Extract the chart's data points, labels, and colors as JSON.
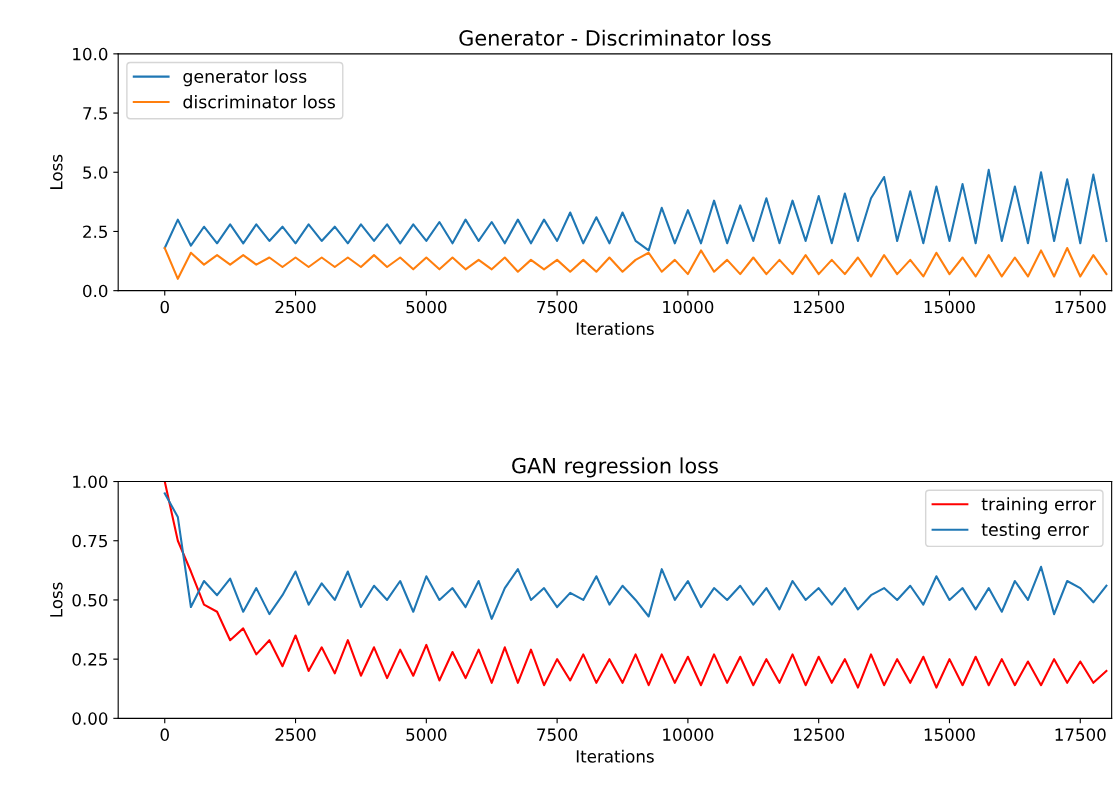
{
  "chart_data": [
    {
      "type": "line",
      "title": "Generator - Discriminator loss",
      "xlabel": "Iterations",
      "ylabel": "Loss",
      "x": [
        0,
        250,
        500,
        750,
        1000,
        1250,
        1500,
        1750,
        2000,
        2250,
        2500,
        2750,
        3000,
        3250,
        3500,
        3750,
        4000,
        4250,
        4500,
        4750,
        5000,
        5250,
        5500,
        5750,
        6000,
        6250,
        6500,
        6750,
        7000,
        7250,
        7500,
        7750,
        8000,
        8250,
        8500,
        8750,
        9000,
        9250,
        9500,
        9750,
        10000,
        10250,
        10500,
        10750,
        11000,
        11250,
        11500,
        11750,
        12000,
        12250,
        12500,
        12750,
        13000,
        13250,
        13500,
        13750,
        14000,
        14250,
        14500,
        14750,
        15000,
        15250,
        15500,
        15750,
        16000,
        16250,
        16500,
        16750,
        17000,
        17250,
        17500,
        17750,
        18000
      ],
      "series": [
        {
          "name": "generator loss",
          "color": "#1f77b4",
          "values": [
            1.8,
            3.0,
            1.9,
            2.7,
            2.0,
            2.8,
            2.0,
            2.8,
            2.1,
            2.7,
            2.0,
            2.8,
            2.1,
            2.7,
            2.0,
            2.8,
            2.1,
            2.8,
            2.0,
            2.8,
            2.1,
            2.9,
            2.0,
            3.0,
            2.1,
            2.9,
            2.0,
            3.0,
            2.0,
            3.0,
            2.1,
            3.3,
            2.0,
            3.1,
            2.0,
            3.3,
            2.1,
            1.7,
            3.5,
            2.0,
            3.4,
            2.0,
            3.8,
            2.0,
            3.6,
            2.1,
            3.9,
            2.0,
            3.8,
            2.1,
            4.0,
            2.0,
            4.1,
            2.1,
            3.9,
            4.8,
            2.1,
            4.2,
            2.0,
            4.4,
            2.1,
            4.5,
            2.0,
            5.1,
            2.1,
            4.4,
            2.0,
            5.0,
            2.1,
            4.7,
            2.0,
            4.9,
            2.1
          ]
        },
        {
          "name": "discriminator loss",
          "color": "#ff7f0e",
          "values": [
            1.8,
            0.5,
            1.6,
            1.1,
            1.5,
            1.1,
            1.5,
            1.1,
            1.4,
            1.0,
            1.4,
            1.0,
            1.4,
            1.0,
            1.4,
            1.0,
            1.5,
            1.0,
            1.4,
            0.9,
            1.4,
            0.9,
            1.4,
            0.9,
            1.3,
            0.9,
            1.4,
            0.8,
            1.3,
            0.9,
            1.3,
            0.8,
            1.3,
            0.8,
            1.4,
            0.8,
            1.3,
            1.6,
            0.8,
            1.3,
            0.7,
            1.7,
            0.8,
            1.3,
            0.7,
            1.4,
            0.7,
            1.3,
            0.7,
            1.5,
            0.7,
            1.3,
            0.7,
            1.4,
            0.6,
            1.5,
            0.7,
            1.3,
            0.6,
            1.6,
            0.7,
            1.4,
            0.6,
            1.5,
            0.6,
            1.4,
            0.6,
            1.7,
            0.6,
            1.8,
            0.6,
            1.5,
            0.7
          ]
        }
      ],
      "xlim": [
        -890,
        18100
      ],
      "ylim": [
        0,
        10
      ],
      "xticks": [
        0,
        2500,
        5000,
        7500,
        10000,
        12500,
        15000,
        17500
      ],
      "yticks": [
        {
          "value": 0,
          "label": "0.0"
        },
        {
          "value": 2.5,
          "label": "2.5"
        },
        {
          "value": 5,
          "label": "5.0"
        },
        {
          "value": 7.5,
          "label": "7.5"
        },
        {
          "value": 10,
          "label": "10.0"
        }
      ],
      "legend": "top left",
      "grid": false,
      "marker": "none",
      "line_style": "solid"
    },
    {
      "type": "line",
      "title": "GAN regression loss",
      "xlabel": "Iterations",
      "ylabel": "Loss",
      "x": [
        0,
        250,
        500,
        750,
        1000,
        1250,
        1500,
        1750,
        2000,
        2250,
        2500,
        2750,
        3000,
        3250,
        3500,
        3750,
        4000,
        4250,
        4500,
        4750,
        5000,
        5250,
        5500,
        5750,
        6000,
        6250,
        6500,
        6750,
        7000,
        7250,
        7500,
        7750,
        8000,
        8250,
        8500,
        8750,
        9000,
        9250,
        9500,
        9750,
        10000,
        10250,
        10500,
        10750,
        11000,
        11250,
        11500,
        11750,
        12000,
        12250,
        12500,
        12750,
        13000,
        13250,
        13500,
        13750,
        14000,
        14250,
        14500,
        14750,
        15000,
        15250,
        15500,
        15750,
        16000,
        16250,
        16500,
        16750,
        17000,
        17250,
        17500,
        17750,
        18000
      ],
      "series": [
        {
          "name": "training error",
          "color": "#ff0000",
          "values": [
            1.0,
            0.75,
            0.62,
            0.48,
            0.45,
            0.33,
            0.38,
            0.27,
            0.33,
            0.22,
            0.35,
            0.2,
            0.3,
            0.19,
            0.33,
            0.18,
            0.3,
            0.17,
            0.29,
            0.18,
            0.31,
            0.16,
            0.28,
            0.17,
            0.29,
            0.15,
            0.3,
            0.15,
            0.29,
            0.14,
            0.25,
            0.16,
            0.27,
            0.15,
            0.25,
            0.15,
            0.27,
            0.14,
            0.27,
            0.15,
            0.26,
            0.14,
            0.27,
            0.15,
            0.26,
            0.14,
            0.25,
            0.15,
            0.27,
            0.14,
            0.26,
            0.15,
            0.25,
            0.13,
            0.27,
            0.14,
            0.25,
            0.15,
            0.26,
            0.13,
            0.25,
            0.14,
            0.26,
            0.14,
            0.25,
            0.14,
            0.24,
            0.14,
            0.25,
            0.15,
            0.24,
            0.15,
            0.2
          ]
        },
        {
          "name": "testing error",
          "color": "#1f77b4",
          "values": [
            0.95,
            0.85,
            0.47,
            0.58,
            0.52,
            0.59,
            0.45,
            0.55,
            0.44,
            0.52,
            0.62,
            0.48,
            0.57,
            0.5,
            0.62,
            0.47,
            0.56,
            0.5,
            0.58,
            0.45,
            0.6,
            0.5,
            0.55,
            0.47,
            0.58,
            0.42,
            0.55,
            0.63,
            0.5,
            0.55,
            0.47,
            0.53,
            0.5,
            0.6,
            0.48,
            0.56,
            0.5,
            0.43,
            0.63,
            0.5,
            0.58,
            0.47,
            0.55,
            0.5,
            0.56,
            0.48,
            0.55,
            0.46,
            0.58,
            0.5,
            0.55,
            0.48,
            0.55,
            0.46,
            0.52,
            0.55,
            0.5,
            0.56,
            0.48,
            0.6,
            0.5,
            0.55,
            0.46,
            0.55,
            0.45,
            0.58,
            0.5,
            0.64,
            0.44,
            0.58,
            0.55,
            0.49,
            0.56
          ]
        }
      ],
      "xlim": [
        -890,
        18100
      ],
      "ylim": [
        0,
        1
      ],
      "xticks": [
        0,
        2500,
        5000,
        7500,
        10000,
        12500,
        15000,
        17500
      ],
      "yticks": [
        {
          "value": 0,
          "label": "0.00"
        },
        {
          "value": 0.25,
          "label": "0.25"
        },
        {
          "value": 0.5,
          "label": "0.50"
        },
        {
          "value": 0.75,
          "label": "0.75"
        },
        {
          "value": 1,
          "label": "1.00"
        }
      ],
      "legend": "top right",
      "grid": false,
      "marker": "none",
      "line_style": "solid"
    }
  ]
}
